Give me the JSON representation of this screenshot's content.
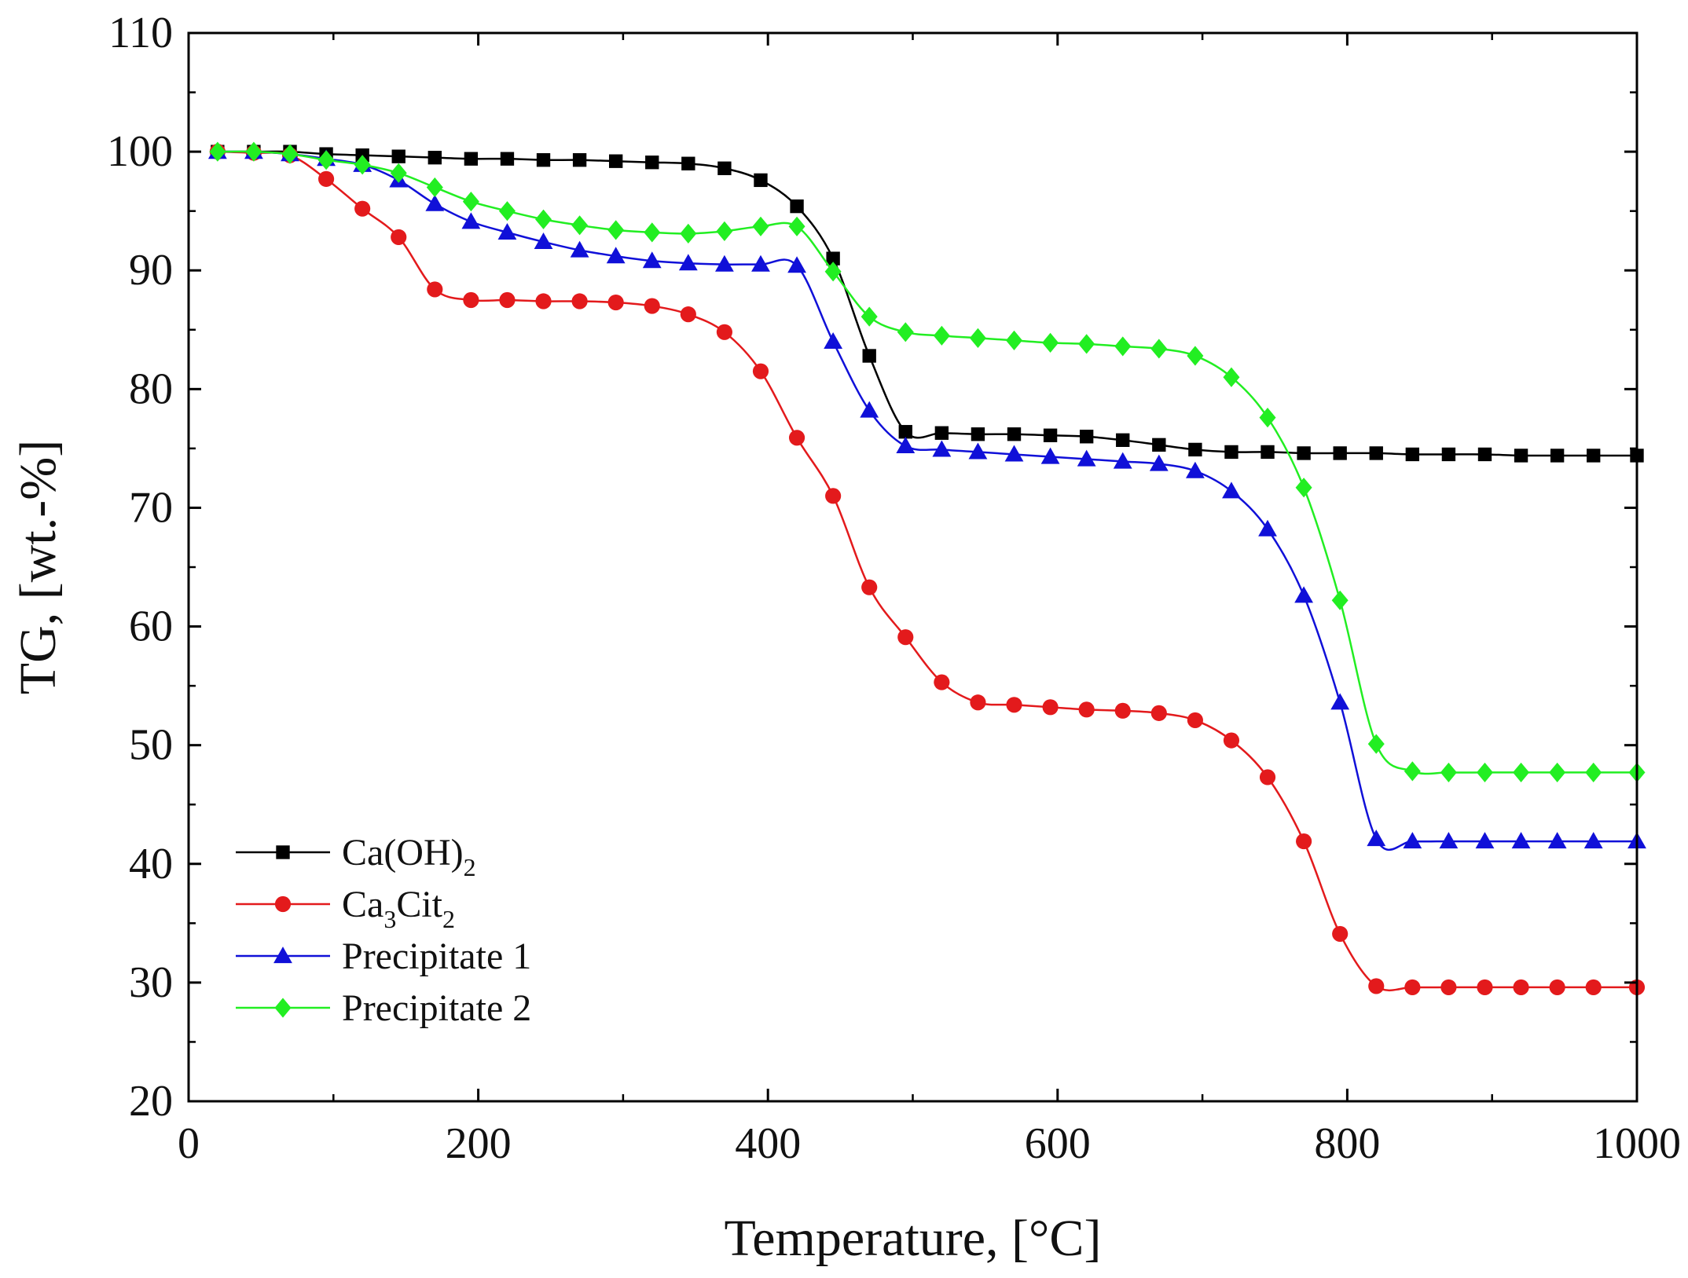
{
  "chart_data": {
    "type": "line",
    "title": "",
    "xlabel": "Temperature, [°C]",
    "ylabel": "TG, [wt.-%]",
    "xlim": [
      0,
      1000
    ],
    "ylim": [
      20,
      110
    ],
    "xticks": [
      "0",
      "200",
      "400",
      "600",
      "800",
      "1000"
    ],
    "yticks": [
      "20",
      "30",
      "40",
      "50",
      "60",
      "70",
      "80",
      "90",
      "100",
      "110"
    ],
    "grid": false,
    "legend_position": "bottom-left",
    "series": [
      {
        "name": "Ca(OH)2",
        "legend_main": "Ca(OH)",
        "legend_sub": "2",
        "legend_tail": "",
        "color": "#000000",
        "marker": "square",
        "x": [
          20,
          45,
          70,
          95,
          120,
          145,
          170,
          195,
          220,
          245,
          270,
          295,
          320,
          345,
          370,
          395,
          420,
          445,
          470,
          495,
          520,
          545,
          570,
          595,
          620,
          645,
          670,
          695,
          720,
          745,
          770,
          795,
          820,
          845,
          870,
          895,
          920,
          945,
          970,
          1000
        ],
        "values": [
          100,
          100,
          100,
          99.8,
          99.7,
          99.6,
          99.5,
          99.4,
          99.4,
          99.3,
          99.3,
          99.2,
          99.1,
          99,
          98.6,
          97.6,
          95.4,
          91,
          82.8,
          76.4,
          76.3,
          76.2,
          76.2,
          76.1,
          76,
          75.7,
          75.3,
          74.9,
          74.7,
          74.7,
          74.6,
          74.6,
          74.6,
          74.5,
          74.5,
          74.5,
          74.4,
          74.4,
          74.4,
          74.4
        ]
      },
      {
        "name": "Ca3Cit2",
        "legend_main": "Ca",
        "legend_sub": "3",
        "legend_tail": "Cit",
        "legend_sub2": "2",
        "color": "#e31a1c",
        "marker": "circle",
        "x": [
          20,
          45,
          70,
          95,
          120,
          145,
          170,
          195,
          220,
          245,
          270,
          295,
          320,
          345,
          370,
          395,
          420,
          445,
          470,
          495,
          520,
          545,
          570,
          595,
          620,
          645,
          670,
          695,
          720,
          745,
          770,
          795,
          820,
          845,
          870,
          895,
          920,
          945,
          970,
          1000
        ],
        "values": [
          100,
          99.9,
          99.7,
          97.7,
          95.2,
          92.8,
          88.4,
          87.5,
          87.5,
          87.4,
          87.4,
          87.3,
          87,
          86.3,
          84.8,
          81.5,
          75.9,
          71,
          63.3,
          59.1,
          55.3,
          53.6,
          53.4,
          53.2,
          53,
          52.9,
          52.7,
          52.1,
          50.4,
          47.3,
          41.9,
          34.1,
          29.7,
          29.6,
          29.6,
          29.6,
          29.6,
          29.6,
          29.6,
          29.6
        ]
      },
      {
        "name": "Precipitate 1",
        "legend_main": "Precipitate 1",
        "legend_sub": "",
        "legend_tail": "",
        "color": "#1010d8",
        "marker": "triangle",
        "x": [
          20,
          45,
          70,
          95,
          120,
          145,
          170,
          195,
          220,
          245,
          270,
          295,
          320,
          345,
          370,
          395,
          420,
          445,
          470,
          495,
          520,
          545,
          570,
          595,
          620,
          645,
          670,
          695,
          720,
          745,
          770,
          795,
          820,
          845,
          870,
          895,
          920,
          945,
          970,
          1000
        ],
        "values": [
          100,
          100,
          99.8,
          99.4,
          98.9,
          97.6,
          95.6,
          94.1,
          93.2,
          92.4,
          91.7,
          91.2,
          90.8,
          90.6,
          90.5,
          90.5,
          90.4,
          84,
          78.2,
          75.2,
          74.9,
          74.7,
          74.5,
          74.3,
          74.1,
          73.9,
          73.7,
          73.1,
          71.4,
          68.2,
          62.6,
          53.6,
          42.1,
          41.9,
          41.9,
          41.9,
          41.9,
          41.9,
          41.9,
          41.9
        ]
      },
      {
        "name": "Precipitate 2",
        "legend_main": "Precipitate 2",
        "legend_sub": "",
        "legend_tail": "",
        "color": "#22ee22",
        "marker": "diamond",
        "x": [
          20,
          45,
          70,
          95,
          120,
          145,
          170,
          195,
          220,
          245,
          270,
          295,
          320,
          345,
          370,
          395,
          420,
          445,
          470,
          495,
          520,
          545,
          570,
          595,
          620,
          645,
          670,
          695,
          720,
          745,
          770,
          795,
          820,
          845,
          870,
          895,
          920,
          945,
          970,
          1000
        ],
        "values": [
          100,
          100,
          99.8,
          99.3,
          98.9,
          98.2,
          97,
          95.8,
          95,
          94.3,
          93.8,
          93.4,
          93.2,
          93.1,
          93.3,
          93.7,
          93.7,
          89.9,
          86.1,
          84.8,
          84.5,
          84.3,
          84.1,
          83.9,
          83.8,
          83.6,
          83.4,
          82.8,
          81,
          77.6,
          71.7,
          62.2,
          50.1,
          47.8,
          47.7,
          47.7,
          47.7,
          47.7,
          47.7,
          47.7
        ]
      }
    ]
  }
}
